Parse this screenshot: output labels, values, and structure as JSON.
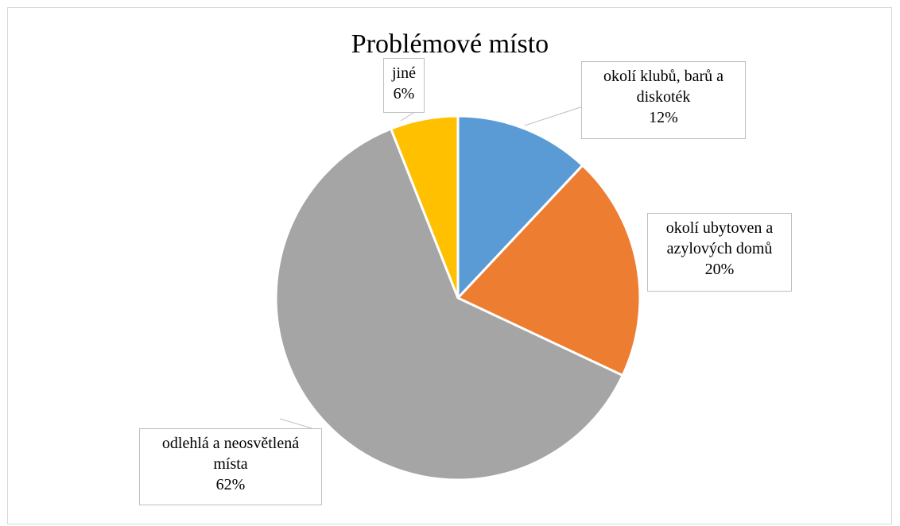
{
  "chart_data": {
    "type": "pie",
    "title": "Problémové místo",
    "slices": [
      {
        "label_lines": [
          "okolí klubů, barů a",
          "diskoték"
        ],
        "percent_label": "12%",
        "value": 12,
        "color": "#5b9bd5"
      },
      {
        "label_lines": [
          "okolí ubytoven a",
          "azylových domů"
        ],
        "percent_label": "20%",
        "value": 20,
        "color": "#ed7d31"
      },
      {
        "label_lines": [
          "odlehlá a neosvětlená",
          "místa"
        ],
        "percent_label": "62%",
        "value": 62,
        "color": "#a5a5a5"
      },
      {
        "label_lines": [
          "jiné"
        ],
        "percent_label": "6%",
        "value": 6,
        "color": "#ffc000"
      }
    ]
  }
}
